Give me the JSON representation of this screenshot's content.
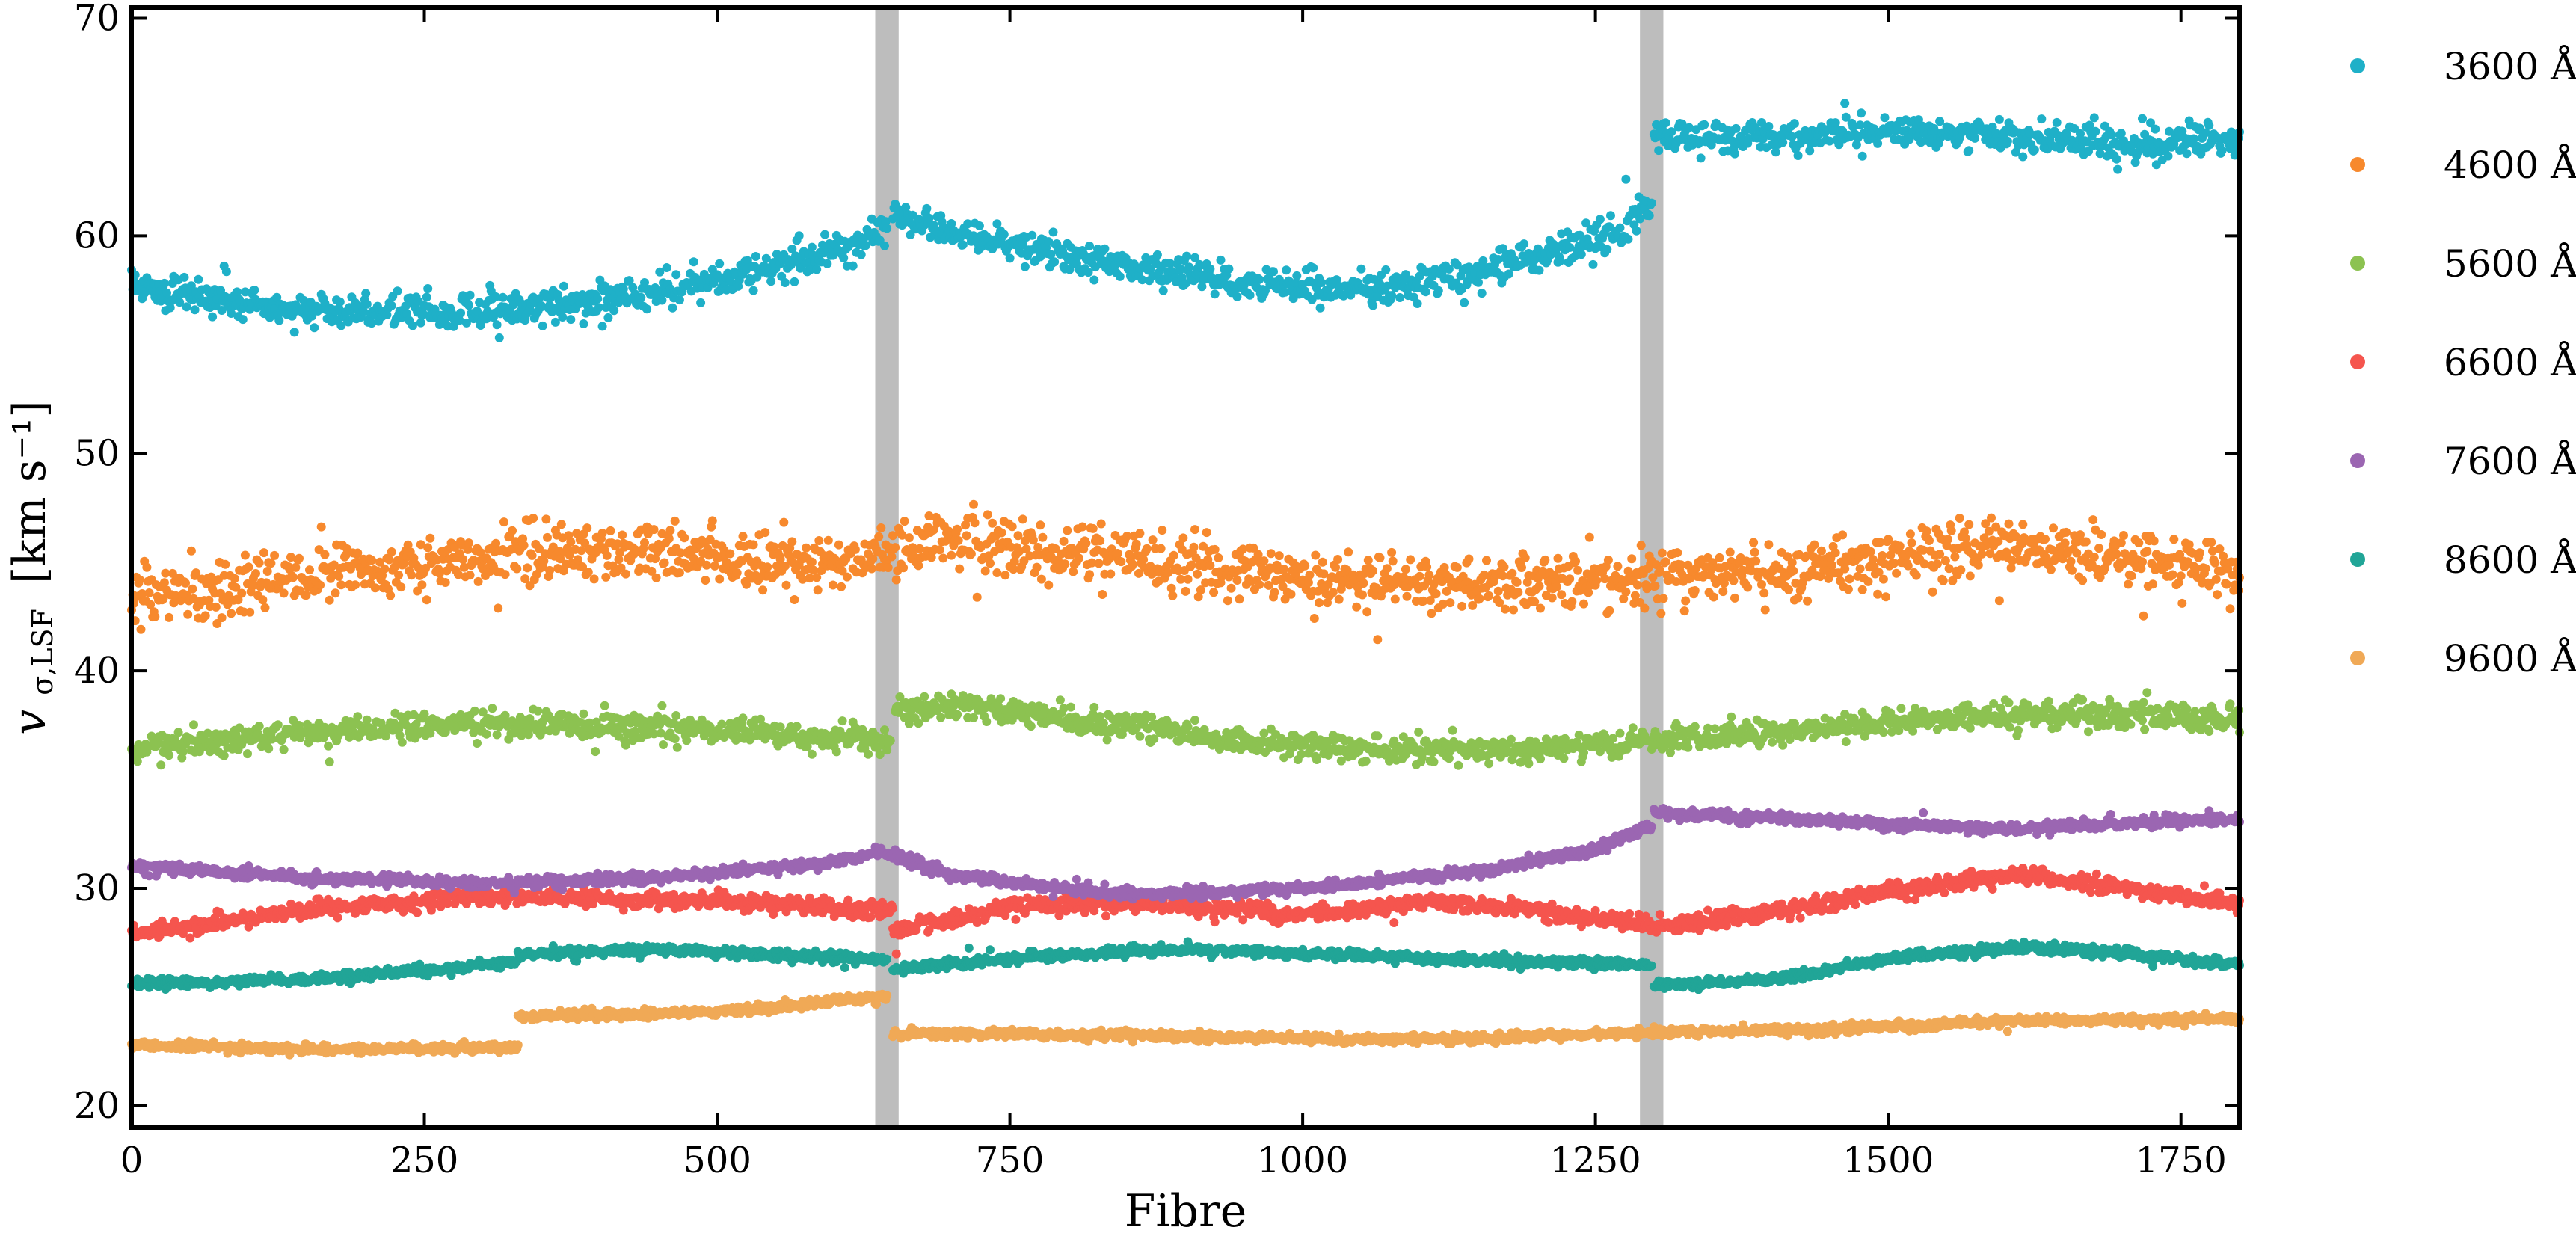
{
  "chart_data": {
    "type": "scatter",
    "title": "",
    "xlabel": "Fibre",
    "ylabel_main": "v",
    "ylabel_sub": "σ,LSF",
    "ylabel_units": "[km s⁻¹]",
    "xlim": [
      0,
      1800
    ],
    "ylim": [
      19,
      70.5
    ],
    "xticks": [
      0,
      250,
      500,
      750,
      1000,
      1250,
      1500,
      1750
    ],
    "yticks": [
      20,
      30,
      40,
      50,
      60,
      70
    ],
    "legend_position": "right-outside",
    "grid": false,
    "excluded_bands": [
      {
        "x0": 635,
        "x1": 655
      },
      {
        "x0": 1288,
        "x1": 1308
      }
    ],
    "band_color": "#bdbdbd",
    "series": [
      {
        "name": "3600 Å",
        "color": "#1fb0c8",
        "noise": 0.7,
        "segments": [
          {
            "x0": 0,
            "x1": 645,
            "x": [
              0,
              100,
              200,
              300,
              400,
              500,
              600,
              645
            ],
            "y": [
              57.8,
              56.8,
              56.5,
              56.6,
              57.0,
              57.9,
              59.4,
              60.4
            ]
          },
          {
            "x0": 650,
            "x1": 1298,
            "x": [
              650,
              750,
              850,
              950,
              1050,
              1150,
              1250,
              1298
            ],
            "y": [
              60.8,
              59.6,
              58.6,
              57.8,
              57.5,
              58.2,
              59.8,
              61.2
            ]
          },
          {
            "x0": 1300,
            "x1": 1800,
            "x": [
              1300,
              1400,
              1500,
              1600,
              1700,
              1800
            ],
            "y": [
              64.6,
              64.6,
              64.8,
              64.6,
              64.2,
              64.4
            ]
          }
        ]
      },
      {
        "name": "4600 Å",
        "color": "#f7892d",
        "noise": 1.2,
        "segments": [
          {
            "x0": 0,
            "x1": 1800,
            "x": [
              0,
              100,
              200,
              300,
              400,
              500,
              600,
              700,
              800,
              900,
              1000,
              1100,
              1200,
              1300,
              1400,
              1500,
              1600,
              1700,
              1800
            ],
            "y": [
              43.6,
              44.0,
              44.6,
              45.2,
              45.6,
              45.2,
              45.0,
              46.0,
              45.4,
              44.8,
              44.2,
              44.0,
              44.0,
              44.2,
              44.6,
              45.2,
              45.8,
              45.2,
              44.6
            ]
          }
        ]
      },
      {
        "name": "5600 Å",
        "color": "#8cc251",
        "noise": 0.55,
        "segments": [
          {
            "x0": 0,
            "x1": 648,
            "x": [
              0,
              150,
              300,
              450,
              600,
              648
            ],
            "y": [
              36.4,
              37.2,
              37.6,
              37.4,
              36.9,
              36.8
            ]
          },
          {
            "x0": 652,
            "x1": 1800,
            "x": [
              652,
              750,
              850,
              950,
              1050,
              1150,
              1250,
              1350,
              1450,
              1550,
              1650,
              1800
            ],
            "y": [
              38.4,
              38.2,
              37.5,
              36.8,
              36.4,
              36.4,
              36.5,
              37.0,
              37.4,
              37.8,
              38.0,
              37.8
            ]
          }
        ]
      },
      {
        "name": "6600 Å",
        "color": "#f5554e",
        "noise": 0.35,
        "segments": [
          {
            "x0": 0,
            "x1": 650,
            "x": [
              0,
              150,
              300,
              450,
              650
            ],
            "y": [
              27.9,
              29.0,
              29.6,
              29.5,
              29.0
            ]
          },
          {
            "x0": 650,
            "x1": 975,
            "x": [
              650,
              750,
              850,
              975
            ],
            "y": [
              28.0,
              29.2,
              29.3,
              29.0
            ]
          },
          {
            "x0": 975,
            "x1": 1298,
            "x": [
              975,
              1100,
              1200,
              1298
            ],
            "y": [
              28.6,
              29.4,
              29.0,
              28.3
            ]
          },
          {
            "x0": 1300,
            "x1": 1800,
            "x": [
              1300,
              1400,
              1500,
              1620,
              1700,
              1800
            ],
            "y": [
              28.2,
              28.9,
              29.9,
              30.6,
              30.0,
              29.3
            ]
          }
        ]
      },
      {
        "name": "7600 Å",
        "color": "#9b66b2",
        "noise": 0.22,
        "segments": [
          {
            "x0": 0,
            "x1": 1298,
            "x": [
              0,
              150,
              300,
              450,
              600,
              640,
              700,
              850,
              1000,
              1150,
              1250,
              1298
            ],
            "y": [
              31.0,
              30.5,
              30.2,
              30.5,
              31.2,
              31.7,
              30.6,
              29.7,
              30.0,
              30.8,
              31.8,
              32.9
            ]
          },
          {
            "x0": 1300,
            "x1": 1800,
            "x": [
              1300,
              1450,
              1600,
              1800
            ],
            "y": [
              33.5,
              33.1,
              32.7,
              33.2
            ]
          }
        ]
      },
      {
        "name": "8600 Å",
        "color": "#21a597",
        "noise": 0.2,
        "segments": [
          {
            "x0": 0,
            "x1": 330,
            "x": [
              0,
              150,
              330
            ],
            "y": [
              25.6,
              25.8,
              26.6
            ]
          },
          {
            "x0": 330,
            "x1": 645,
            "x": [
              330,
              450,
              645
            ],
            "y": [
              27.0,
              27.2,
              26.7
            ]
          },
          {
            "x0": 650,
            "x1": 1298,
            "x": [
              650,
              750,
              900,
              1050,
              1200,
              1298
            ],
            "y": [
              26.2,
              26.8,
              27.2,
              26.9,
              26.6,
              26.5
            ]
          },
          {
            "x0": 1300,
            "x1": 1800,
            "x": [
              1300,
              1400,
              1500,
              1620,
              1700,
              1800
            ],
            "y": [
              25.5,
              25.8,
              26.8,
              27.3,
              27.0,
              26.5
            ]
          }
        ]
      },
      {
        "name": "9600 Å",
        "color": "#f0a956",
        "noise": 0.18,
        "segments": [
          {
            "x0": 0,
            "x1": 330,
            "x": [
              0,
              150,
              330
            ],
            "y": [
              22.8,
              22.6,
              22.7
            ]
          },
          {
            "x0": 330,
            "x1": 645,
            "x": [
              330,
              500,
              645
            ],
            "y": [
              24.1,
              24.3,
              25.0
            ]
          },
          {
            "x0": 650,
            "x1": 1800,
            "x": [
              650,
              800,
              1000,
              1150,
              1300,
              1450,
              1600,
              1800
            ],
            "y": [
              23.3,
              23.3,
              23.1,
              23.1,
              23.4,
              23.5,
              23.9,
              24.0
            ]
          }
        ]
      }
    ]
  }
}
